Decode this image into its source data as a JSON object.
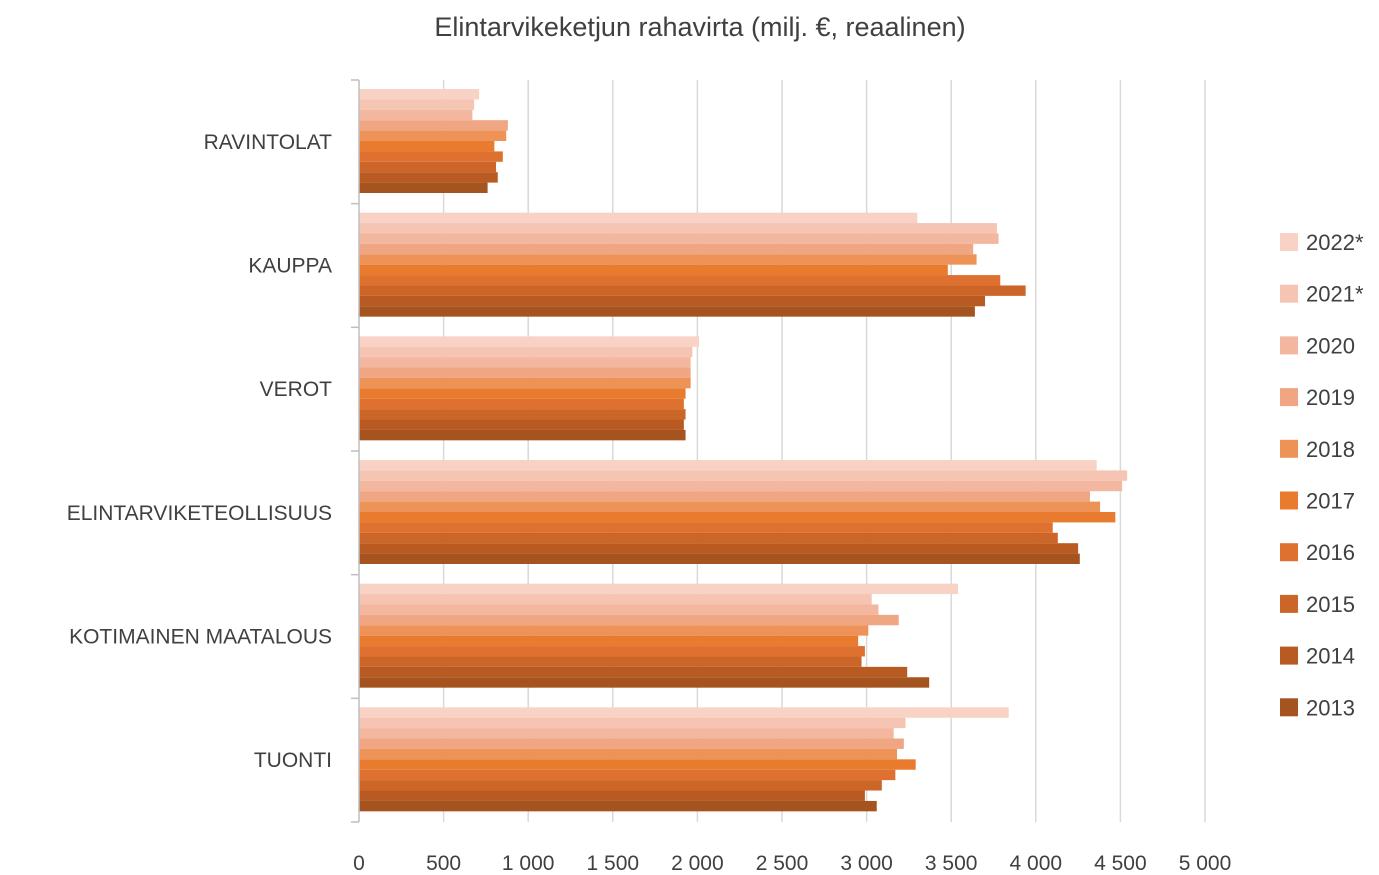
{
  "chart_data": {
    "type": "bar",
    "orientation": "horizontal",
    "title": "Elintarvikeketjun rahavirta (milj. €, reaalinen)",
    "xlabel": "",
    "ylabel": "",
    "xlim": [
      0,
      5000
    ],
    "x_ticks": [
      0,
      500,
      1000,
      1500,
      2000,
      2500,
      3000,
      3500,
      4000,
      4500,
      5000
    ],
    "x_tick_labels": [
      "0",
      "500",
      "1 000",
      "1 500",
      "2 000",
      "2 500",
      "3 000",
      "3 500",
      "4 000",
      "4 500",
      "5 000"
    ],
    "grid": "vertical",
    "legend_position": "right",
    "categories": [
      "RAVINTOLAT",
      "KAUPPA",
      "VEROT",
      "ELINTARVIKETEOLLISUUS",
      "KOTIMAINEN MAATALOUS",
      "TUONTI"
    ],
    "series": [
      {
        "name": "2022*",
        "color": "#f8d3c5",
        "values": [
          710,
          3300,
          2010,
          4360,
          3540,
          3840
        ]
      },
      {
        "name": "2021*",
        "color": "#f5c4b2",
        "values": [
          680,
          3770,
          1970,
          4540,
          3030,
          3230
        ]
      },
      {
        "name": "2020",
        "color": "#f3b69e",
        "values": [
          670,
          3780,
          1960,
          4510,
          3070,
          3160
        ]
      },
      {
        "name": "2019",
        "color": "#f0a583",
        "values": [
          880,
          3630,
          1960,
          4320,
          3190,
          3220
        ]
      },
      {
        "name": "2018",
        "color": "#ee9357",
        "values": [
          870,
          3650,
          1960,
          4380,
          3010,
          3180
        ]
      },
      {
        "name": "2017",
        "color": "#e97b2e",
        "values": [
          800,
          3480,
          1930,
          4470,
          2950,
          3290
        ]
      },
      {
        "name": "2016",
        "color": "#df7130",
        "values": [
          850,
          3790,
          1920,
          4100,
          2990,
          3170
        ]
      },
      {
        "name": "2015",
        "color": "#cc6528",
        "values": [
          810,
          3940,
          1930,
          4130,
          2970,
          3090
        ]
      },
      {
        "name": "2014",
        "color": "#b95a22",
        "values": [
          820,
          3700,
          1920,
          4250,
          3240,
          2990
        ]
      },
      {
        "name": "2013",
        "color": "#a5531f",
        "values": [
          760,
          3640,
          1930,
          4260,
          3370,
          3060
        ]
      }
    ]
  }
}
